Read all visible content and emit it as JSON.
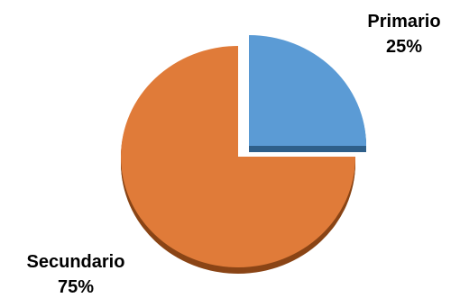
{
  "chart_data": {
    "type": "pie",
    "title": "",
    "exploded": "Primario",
    "slices": [
      {
        "name": "Primario",
        "value": 25,
        "label": "25%",
        "color": "#5b9bd5",
        "shade": "#2e5f8a"
      },
      {
        "name": "Secundario",
        "value": 75,
        "label": "75%",
        "color": "#e07b39",
        "shade": "#8a4516"
      }
    ]
  }
}
